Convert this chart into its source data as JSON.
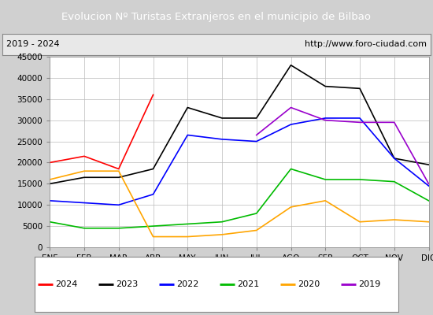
{
  "title": "Evolucion Nº Turistas Extranjeros en el municipio de Bilbao",
  "title_color": "#ffffff",
  "title_bg_color": "#4472c4",
  "subtitle_left": "2019 - 2024",
  "subtitle_right": "http://www.foro-ciudad.com",
  "months": [
    "ENE",
    "FEB",
    "MAR",
    "ABR",
    "MAY",
    "JUN",
    "JUL",
    "AGO",
    "SEP",
    "OCT",
    "NOV",
    "DIC"
  ],
  "ylim": [
    0,
    45000
  ],
  "yticks": [
    0,
    5000,
    10000,
    15000,
    20000,
    25000,
    30000,
    35000,
    40000,
    45000
  ],
  "series": {
    "2024": {
      "color": "#ff0000",
      "data": [
        20000,
        21500,
        18500,
        36000,
        null,
        null,
        null,
        null,
        null,
        null,
        null,
        null
      ]
    },
    "2023": {
      "color": "#000000",
      "data": [
        15000,
        16500,
        16500,
        18500,
        33000,
        30500,
        30500,
        43000,
        38000,
        37500,
        21000,
        19500
      ]
    },
    "2022": {
      "color": "#0000ff",
      "data": [
        11000,
        10500,
        10000,
        12500,
        26500,
        25500,
        25000,
        29000,
        30500,
        30500,
        21000,
        14500
      ]
    },
    "2021": {
      "color": "#00bb00",
      "data": [
        6000,
        4500,
        4500,
        5000,
        5500,
        6000,
        8000,
        18500,
        16000,
        16000,
        15500,
        11000
      ]
    },
    "2020": {
      "color": "#ffa500",
      "data": [
        16000,
        18000,
        18000,
        2500,
        2500,
        3000,
        4000,
        9500,
        11000,
        6000,
        6500,
        6000
      ]
    },
    "2019": {
      "color": "#9900cc",
      "data": [
        null,
        null,
        null,
        null,
        null,
        null,
        26500,
        33000,
        30000,
        29500,
        29500,
        15000
      ]
    }
  },
  "legend_order": [
    "2024",
    "2023",
    "2022",
    "2021",
    "2020",
    "2019"
  ],
  "outer_bg_color": "#d0d0d0",
  "plot_bg_color": "#e8e8e8",
  "chart_bg_color": "#ffffff",
  "grid_color": "#bbbbbb"
}
